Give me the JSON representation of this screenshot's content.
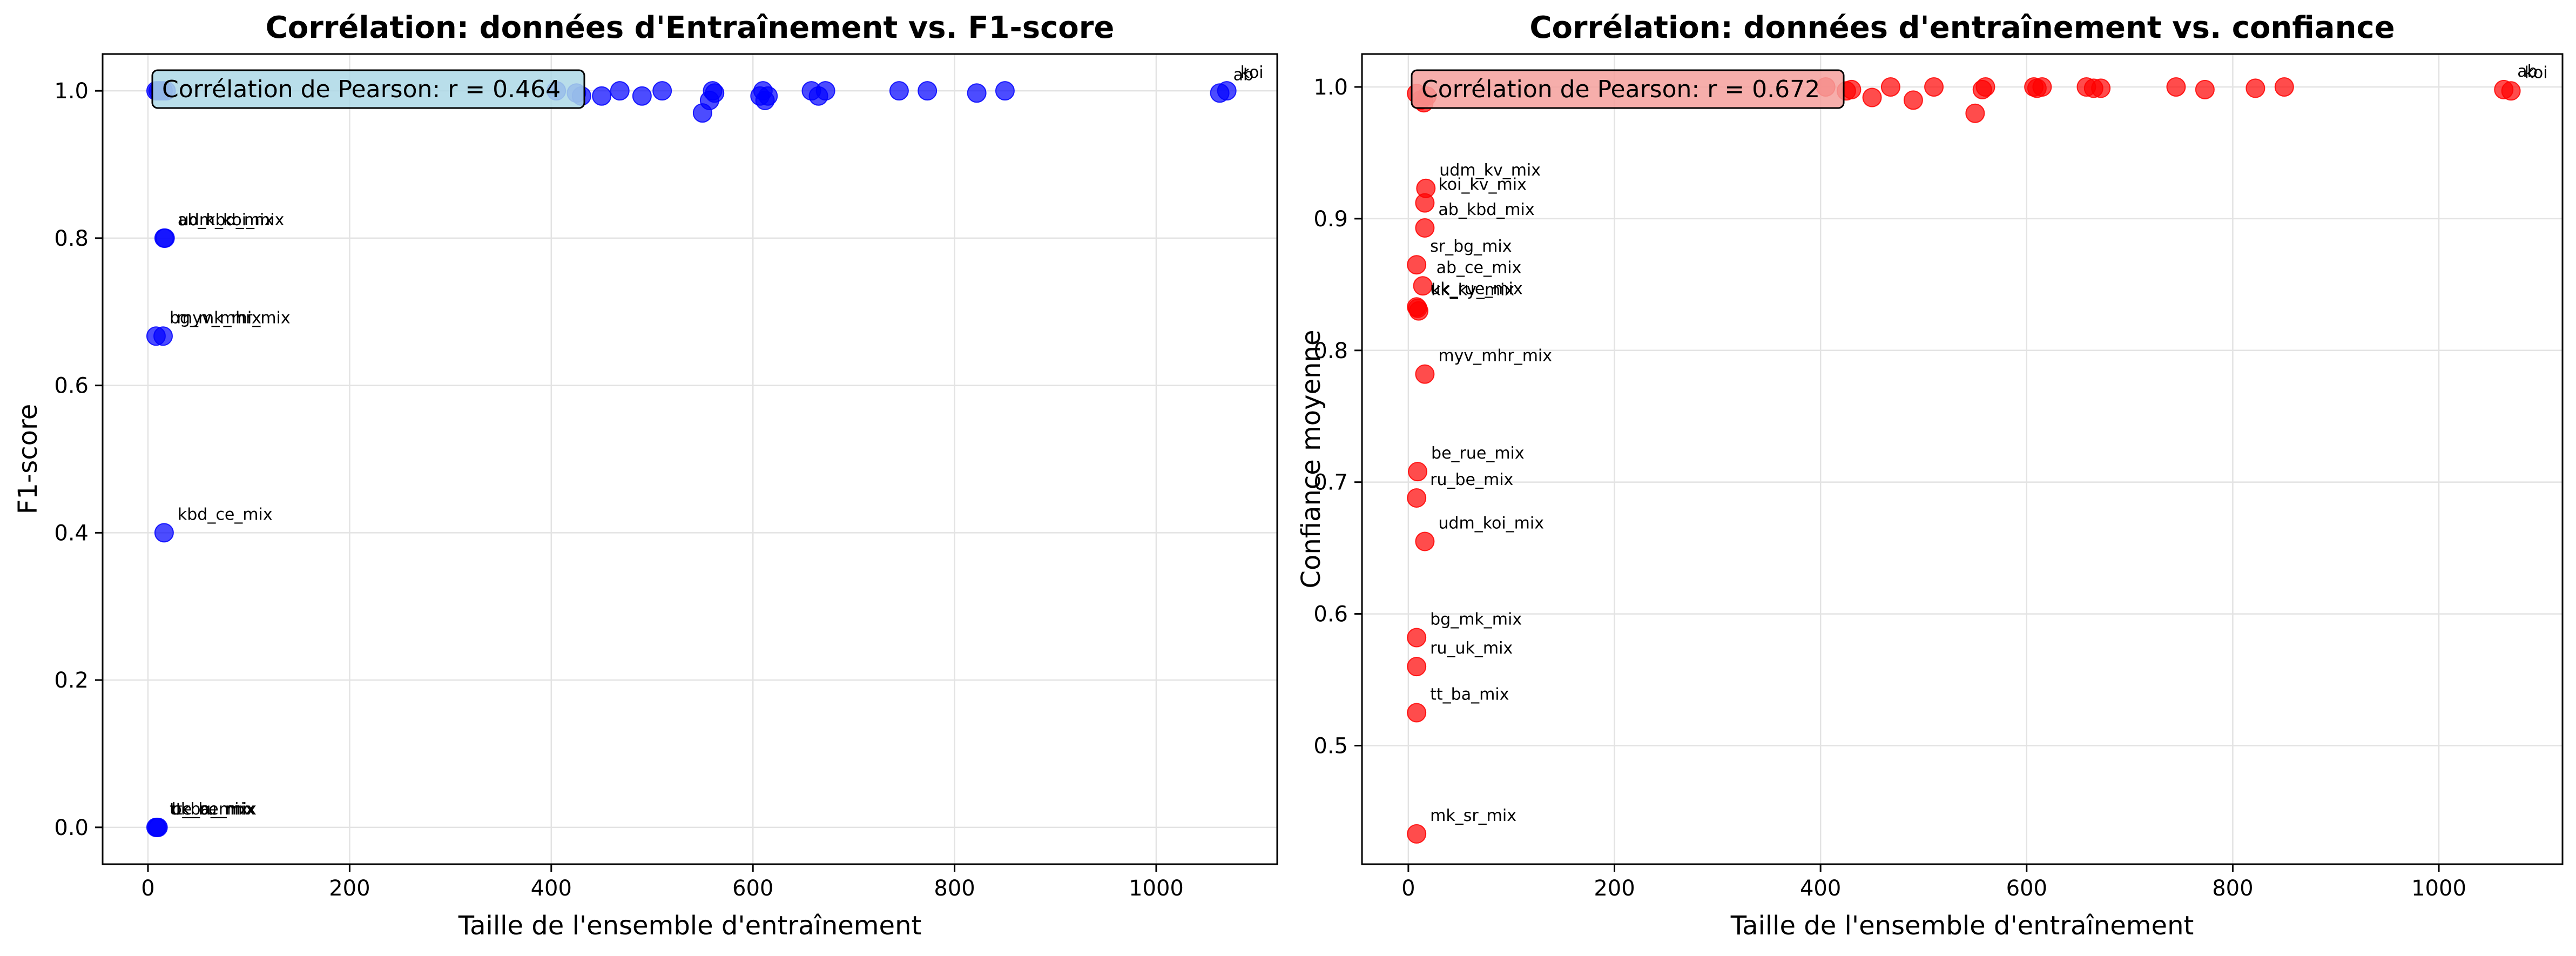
{
  "chart_data": [
    {
      "type": "scatter",
      "title": "Corrélation: données d'Entraînement vs. F1-score",
      "xlabel": "Taille de l'ensemble d'entraînement",
      "ylabel": "F1-score",
      "xlim": [
        -45,
        1120
      ],
      "ylim": [
        -0.05,
        1.05
      ],
      "xticks": [
        0,
        200,
        400,
        600,
        800,
        1000
      ],
      "yticks": [
        0.0,
        0.2,
        0.4,
        0.6,
        0.8,
        1.0
      ],
      "ytick_labels": [
        "0.0",
        "0.2",
        "0.4",
        "0.6",
        "0.8",
        "1.0"
      ],
      "grid": true,
      "marker_color": "#0000ff",
      "annotation": "Corrélation de Pearson: r = 0.464",
      "annotation_fill": "#add8e6",
      "points": [
        {
          "x": 8,
          "y": 1.0
        },
        {
          "x": 10,
          "y": 1.0
        },
        {
          "x": 12,
          "y": 1.0
        },
        {
          "x": 15,
          "y": 1.0
        },
        {
          "x": 18,
          "y": 1.0
        },
        {
          "x": 405,
          "y": 1.0
        },
        {
          "x": 425,
          "y": 0.997
        },
        {
          "x": 430,
          "y": 0.993
        },
        {
          "x": 450,
          "y": 0.993
        },
        {
          "x": 468,
          "y": 1.0
        },
        {
          "x": 490,
          "y": 0.993
        },
        {
          "x": 510,
          "y": 1.0
        },
        {
          "x": 550,
          "y": 0.97
        },
        {
          "x": 557,
          "y": 0.987
        },
        {
          "x": 560,
          "y": 1.0
        },
        {
          "x": 562,
          "y": 0.997
        },
        {
          "x": 607,
          "y": 0.993
        },
        {
          "x": 610,
          "y": 1.0
        },
        {
          "x": 612,
          "y": 0.987
        },
        {
          "x": 615,
          "y": 0.993
        },
        {
          "x": 658,
          "y": 1.0
        },
        {
          "x": 665,
          "y": 0.993
        },
        {
          "x": 672,
          "y": 1.0
        },
        {
          "x": 745,
          "y": 1.0
        },
        {
          "x": 773,
          "y": 1.0
        },
        {
          "x": 822,
          "y": 0.997
        },
        {
          "x": 850,
          "y": 1.0
        },
        {
          "x": 1063,
          "y": 0.997
        },
        {
          "x": 1070,
          "y": 1.0
        },
        {
          "x": 16,
          "y": 0.8
        },
        {
          "x": 17,
          "y": 0.8
        },
        {
          "x": 8,
          "y": 0.667
        },
        {
          "x": 15,
          "y": 0.667
        },
        {
          "x": 16,
          "y": 0.4
        },
        {
          "x": 8,
          "y": 0.0
        },
        {
          "x": 9,
          "y": 0.0
        },
        {
          "x": 10,
          "y": 0.0
        }
      ],
      "labels": [
        {
          "text": "koi",
          "x": 1070,
          "y": 1.0
        },
        {
          "text": "ab",
          "x": 1063,
          "y": 0.997
        },
        {
          "text": "ab_kbd_mix",
          "x": 16,
          "y": 0.8
        },
        {
          "text": "udm_koi_mix",
          "x": 17,
          "y": 0.8
        },
        {
          "text": "bg_mk_mix",
          "x": 8,
          "y": 0.667
        },
        {
          "text": "myv_mhr_mix",
          "x": 15,
          "y": 0.667
        },
        {
          "text": "kbd_ce_mix",
          "x": 16,
          "y": 0.4
        },
        {
          "text": "tt_ba_mix",
          "x": 8,
          "y": 0.0
        },
        {
          "text": "uk_be_mix",
          "x": 9,
          "y": 0.0
        },
        {
          "text": "be_ru_mix",
          "x": 10,
          "y": 0.0
        }
      ]
    },
    {
      "type": "scatter",
      "title": "Corrélation: données d'entraînement vs. confiance",
      "xlabel": "Taille de l'ensemble d'entraînement",
      "ylabel": "Confiance moyenne",
      "xlim": [
        -45,
        1120
      ],
      "ylim": [
        0.41,
        1.025
      ],
      "xticks": [
        0,
        200,
        400,
        600,
        800,
        1000
      ],
      "yticks": [
        0.5,
        0.6,
        0.7,
        0.8,
        0.9,
        1.0
      ],
      "ytick_labels": [
        "0.5",
        "0.6",
        "0.7",
        "0.8",
        "0.9",
        "1.0"
      ],
      "grid": true,
      "marker_color": "#ff0000",
      "annotation": "Corrélation de Pearson: r = 0.672",
      "annotation_fill": "#f4a09c",
      "points": [
        {
          "x": 8,
          "y": 0.995
        },
        {
          "x": 12,
          "y": 0.99
        },
        {
          "x": 15,
          "y": 0.988
        },
        {
          "x": 18,
          "y": 0.993
        },
        {
          "x": 405,
          "y": 1.0
        },
        {
          "x": 425,
          "y": 0.997
        },
        {
          "x": 430,
          "y": 0.998
        },
        {
          "x": 450,
          "y": 0.992
        },
        {
          "x": 468,
          "y": 1.0
        },
        {
          "x": 490,
          "y": 0.99
        },
        {
          "x": 510,
          "y": 1.0
        },
        {
          "x": 550,
          "y": 0.98
        },
        {
          "x": 557,
          "y": 0.998
        },
        {
          "x": 560,
          "y": 1.0
        },
        {
          "x": 607,
          "y": 1.0
        },
        {
          "x": 610,
          "y": 0.999
        },
        {
          "x": 615,
          "y": 1.0
        },
        {
          "x": 658,
          "y": 1.0
        },
        {
          "x": 665,
          "y": 0.999
        },
        {
          "x": 672,
          "y": 0.999
        },
        {
          "x": 745,
          "y": 1.0
        },
        {
          "x": 773,
          "y": 0.998
        },
        {
          "x": 822,
          "y": 0.999
        },
        {
          "x": 850,
          "y": 1.0
        },
        {
          "x": 1063,
          "y": 0.998
        },
        {
          "x": 1070,
          "y": 0.997
        },
        {
          "x": 17,
          "y": 0.923
        },
        {
          "x": 16,
          "y": 0.912
        },
        {
          "x": 16,
          "y": 0.893
        },
        {
          "x": 8,
          "y": 0.865
        },
        {
          "x": 14,
          "y": 0.849
        },
        {
          "x": 8,
          "y": 0.833
        },
        {
          "x": 9,
          "y": 0.832
        },
        {
          "x": 10,
          "y": 0.83
        },
        {
          "x": 16,
          "y": 0.782
        },
        {
          "x": 9,
          "y": 0.708
        },
        {
          "x": 8,
          "y": 0.688
        },
        {
          "x": 16,
          "y": 0.655
        },
        {
          "x": 8,
          "y": 0.582
        },
        {
          "x": 8,
          "y": 0.56
        },
        {
          "x": 8,
          "y": 0.525
        },
        {
          "x": 8,
          "y": 0.433
        }
      ],
      "labels": [
        {
          "text": "ab",
          "x": 1063,
          "y": 0.998
        },
        {
          "text": "koi",
          "x": 1070,
          "y": 0.997
        },
        {
          "text": "udm_kv_mix",
          "x": 17,
          "y": 0.923
        },
        {
          "text": "koi_kv_mix",
          "x": 16,
          "y": 0.912
        },
        {
          "text": "ab_kbd_mix",
          "x": 16,
          "y": 0.893
        },
        {
          "text": "sr_bg_mix",
          "x": 8,
          "y": 0.865
        },
        {
          "text": "ab_ce_mix",
          "x": 14,
          "y": 0.849
        },
        {
          "text": "uk_rue_mix",
          "x": 8,
          "y": 0.833
        },
        {
          "text": "kk_ky_mix",
          "x": 9,
          "y": 0.832
        },
        {
          "text": "myv_mhr_mix",
          "x": 16,
          "y": 0.782
        },
        {
          "text": "be_rue_mix",
          "x": 9,
          "y": 0.708
        },
        {
          "text": "ru_be_mix",
          "x": 8,
          "y": 0.688
        },
        {
          "text": "udm_koi_mix",
          "x": 16,
          "y": 0.655
        },
        {
          "text": "bg_mk_mix",
          "x": 8,
          "y": 0.582
        },
        {
          "text": "ru_uk_mix",
          "x": 8,
          "y": 0.56
        },
        {
          "text": "tt_ba_mix",
          "x": 8,
          "y": 0.525
        },
        {
          "text": "mk_sr_mix",
          "x": 8,
          "y": 0.433
        }
      ]
    }
  ]
}
